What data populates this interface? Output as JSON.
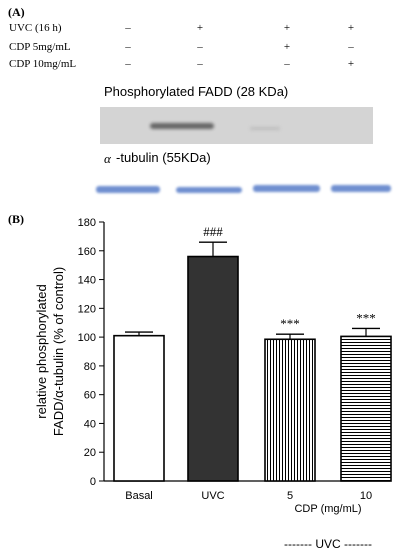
{
  "panel_a": {
    "label": "(A)",
    "conditions": [
      {
        "label": "UVC (16 h)",
        "marks": [
          "–",
          "+",
          "+",
          "+"
        ]
      },
      {
        "label": "CDP 5mg/mL",
        "marks": [
          "–",
          "–",
          "+",
          "–"
        ]
      },
      {
        "label": "CDP 10mg/mL",
        "marks": [
          "–",
          "–",
          "–",
          "+"
        ]
      }
    ],
    "blot1_title": "Phosphorylated FADD (28 KDa)",
    "blot2_alpha": "α",
    "blot2_title": "-tubulin (55KDa)",
    "colors": {
      "blot_bg": "#d4d4d4",
      "tubulin_band": "#6f8fd0",
      "fadd_band": "#5a5a5a"
    }
  },
  "panel_b": {
    "label": "(B)"
  },
  "chart_data": {
    "type": "bar",
    "categories": [
      "Basal",
      "UVC",
      "5",
      "10"
    ],
    "values": [
      101,
      156,
      98.5,
      100.5
    ],
    "errors": [
      2.5,
      10,
      3.5,
      5.5
    ],
    "annotations": [
      "",
      "###",
      "***",
      "***"
    ],
    "fills": [
      "open",
      "solid",
      "vertical-stripes",
      "horizontal-stripes"
    ],
    "ylabel_line1": "relative phosphorylated",
    "ylabel_line2": "FADD/α-tubulin (% of control)",
    "xlabel": "CDP (mg/mL)",
    "group_label": "------- UVC -------",
    "ylim": [
      0,
      180
    ],
    "yticks": [
      0,
      20,
      40,
      60,
      80,
      100,
      120,
      140,
      160,
      180
    ],
    "colors": {
      "solid_bar": "#333333",
      "axis": "#000000"
    }
  }
}
